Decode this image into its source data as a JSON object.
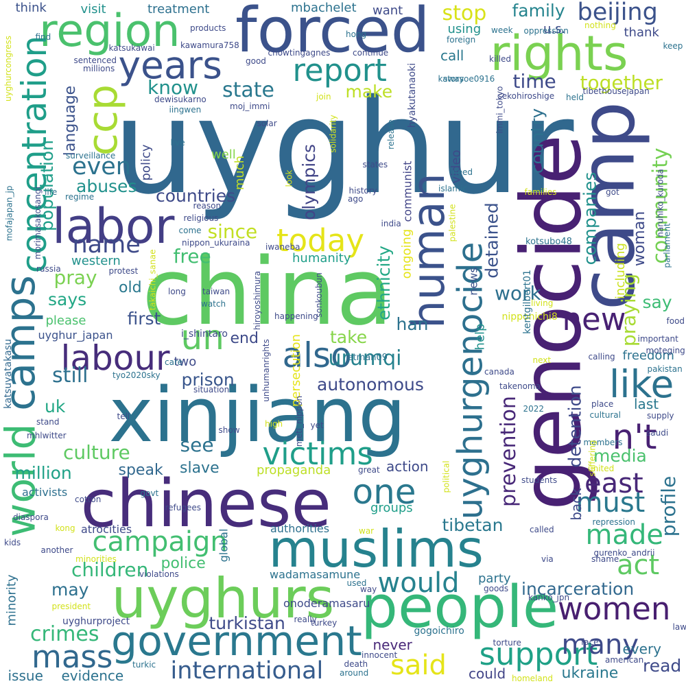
{
  "words": [
    {
      "text": "uyghur",
      "color": "#31688e"
    },
    {
      "text": "china",
      "color": "#5ec962"
    },
    {
      "text": "genocide",
      "color": "#482173"
    },
    {
      "text": "xinjiang",
      "color": "#2c728e"
    },
    {
      "text": "chinese",
      "color": "#472d7b"
    },
    {
      "text": "camp",
      "color": "#3e4a89"
    },
    {
      "text": "people",
      "color": "#35b779"
    },
    {
      "text": "forced",
      "color": "#3b528b"
    },
    {
      "text": "muslims",
      "color": "#26828e"
    },
    {
      "text": "uyghurs",
      "color": "#6ccd5a"
    },
    {
      "text": "rights",
      "color": "#7ad151"
    },
    {
      "text": "region",
      "color": "#4ac16d"
    },
    {
      "text": "labor",
      "color": "#433e85"
    },
    {
      "text": "government",
      "color": "#2a788e"
    },
    {
      "text": "human",
      "color": "#3b528b"
    },
    {
      "text": "camps",
      "color": "#2c728e"
    },
    {
      "text": "concentration",
      "color": "#1f9e89"
    },
    {
      "text": "world",
      "color": "#3dbc74"
    },
    {
      "text": "uyghurgenocide",
      "color": "#2d708e"
    },
    {
      "text": "years",
      "color": "#3b528b"
    },
    {
      "text": "report",
      "color": "#21918c"
    },
    {
      "text": "ccp",
      "color": "#a8db34"
    },
    {
      "text": "labour",
      "color": "#472d7b"
    },
    {
      "text": "also",
      "color": "#31688e"
    },
    {
      "text": "un",
      "color": "#5ec962"
    },
    {
      "text": "like",
      "color": "#2c728e"
    },
    {
      "text": "new",
      "color": "#482173"
    },
    {
      "text": "n't",
      "color": "#482173"
    },
    {
      "text": "one",
      "color": "#2a788e"
    },
    {
      "text": "victims",
      "color": "#1f9e89"
    },
    {
      "text": "today",
      "color": "#e5e419"
    },
    {
      "text": "support",
      "color": "#1fa187"
    },
    {
      "text": "mass",
      "color": "#31688e"
    },
    {
      "text": "women",
      "color": "#481f70"
    },
    {
      "text": "said",
      "color": "#e5e419"
    },
    {
      "text": "would",
      "color": "#26828e"
    },
    {
      "text": "campaign",
      "color": "#42be71"
    },
    {
      "text": "international",
      "color": "#365c8d"
    },
    {
      "text": "many",
      "color": "#3e4a89"
    },
    {
      "text": "act",
      "color": "#5ec962"
    },
    {
      "text": "made",
      "color": "#35b779"
    },
    {
      "text": "must",
      "color": "#2a788e"
    },
    {
      "text": "east",
      "color": "#482878"
    },
    {
      "text": "even",
      "color": "#2c728e"
    },
    {
      "text": "name",
      "color": "#3e4a89"
    },
    {
      "text": "community",
      "color": "#75d054"
    },
    {
      "text": "beijing",
      "color": "#3b528b"
    },
    {
      "text": "state",
      "color": "#2a788e"
    },
    {
      "text": "know",
      "color": "#21918c"
    },
    {
      "text": "together",
      "color": "#bddf26"
    },
    {
      "text": "stop",
      "color": "#d8e219"
    },
    {
      "text": "time",
      "color": "#3e4a89"
    },
    {
      "text": "make",
      "color": "#bddf26"
    },
    {
      "text": "family",
      "color": "#25848e"
    },
    {
      "text": "population",
      "color": "#1f9e89"
    },
    {
      "text": "language",
      "color": "#3b528b"
    },
    {
      "text": "abuses",
      "color": "#21918c"
    },
    {
      "text": "countries",
      "color": "#3e4a89"
    },
    {
      "text": "since",
      "color": "#c2df23"
    },
    {
      "text": "free",
      "color": "#42be71"
    },
    {
      "text": "pray",
      "color": "#7ad151"
    },
    {
      "text": "says",
      "color": "#22a785"
    },
    {
      "text": "old",
      "color": "#2a788e"
    },
    {
      "text": "olympics",
      "color": "#414487"
    },
    {
      "text": "ethnicity",
      "color": "#22a785"
    },
    {
      "text": "detained",
      "color": "#3b528b"
    },
    {
      "text": "prevention",
      "color": "#482878"
    },
    {
      "text": "country",
      "color": "#2d708e"
    },
    {
      "text": "companies",
      "color": "#21918c"
    },
    {
      "text": "work",
      "color": "#2d708e"
    },
    {
      "text": "detention",
      "color": "#3e4a89"
    },
    {
      "text": "praying",
      "color": "#a8db34"
    },
    {
      "text": "say",
      "color": "#3dbc74"
    },
    {
      "text": "profile",
      "color": "#2c728e"
    },
    {
      "text": "woman",
      "color": "#3e4a89"
    },
    {
      "text": "including",
      "color": "#cae11f"
    },
    {
      "text": "first",
      "color": "#3b528b"
    },
    {
      "text": "end",
      "color": "#3e4a89"
    },
    {
      "text": "take",
      "color": "#86d549"
    },
    {
      "text": "han",
      "color": "#2c728e"
    },
    {
      "text": "urumqi",
      "color": "#26828e"
    },
    {
      "text": "autonomous",
      "color": "#3e4a89"
    },
    {
      "text": "prison",
      "color": "#39568c"
    },
    {
      "text": "still",
      "color": "#2d708e"
    },
    {
      "text": "uk",
      "color": "#22a785"
    },
    {
      "text": "see",
      "color": "#2c728e"
    },
    {
      "text": "culture",
      "color": "#5ec962"
    },
    {
      "text": "slave",
      "color": "#2c728e"
    },
    {
      "text": "million",
      "color": "#1fa187"
    },
    {
      "text": "speak",
      "color": "#31688e"
    },
    {
      "text": "propaganda",
      "color": "#bddf26"
    },
    {
      "text": "action",
      "color": "#3e4a89"
    },
    {
      "text": "groups",
      "color": "#1f9e89"
    },
    {
      "text": "tibetan",
      "color": "#2a788e"
    },
    {
      "text": "media",
      "color": "#4ac16d"
    },
    {
      "text": "back",
      "color": "#3e4a89"
    },
    {
      "text": "police",
      "color": "#42be71"
    },
    {
      "text": "children",
      "color": "#35b779"
    },
    {
      "text": "may",
      "color": "#2d708e"
    },
    {
      "text": "party",
      "color": "#2c728e"
    },
    {
      "text": "incarceration",
      "color": "#31688e"
    },
    {
      "text": "turkistan",
      "color": "#3e4a89"
    },
    {
      "text": "crimes",
      "color": "#35b779"
    },
    {
      "text": "never",
      "color": "#482878"
    },
    {
      "text": "every",
      "color": "#2c728e"
    },
    {
      "text": "read",
      "color": "#3e4a89"
    },
    {
      "text": "ukraine",
      "color": "#2a788e"
    },
    {
      "text": "could",
      "color": "#414487"
    },
    {
      "text": "evidence",
      "color": "#2c728e"
    },
    {
      "text": "issue",
      "color": "#2d708e"
    },
    {
      "text": "call",
      "color": "#2a788e"
    },
    {
      "text": "using",
      "color": "#21918c"
    },
    {
      "text": "u.s.",
      "color": "#3e4a89"
    },
    {
      "text": "thank",
      "color": "#3e4a89"
    },
    {
      "text": "want",
      "color": "#3e4a89"
    },
    {
      "text": "mbachelet",
      "color": "#2c728e"
    },
    {
      "text": "visit",
      "color": "#21918c"
    },
    {
      "text": "treatment",
      "color": "#2d708e"
    },
    {
      "text": "think",
      "color": "#3b528b"
    },
    {
      "text": "two",
      "color": "#3e4a89"
    },
    {
      "text": "policy",
      "color": "#3e4a89"
    },
    {
      "text": "well",
      "color": "#86d549"
    },
    {
      "text": "much",
      "color": "#c2df23"
    },
    {
      "text": "communist",
      "color": "#414487"
    },
    {
      "text": "humanity",
      "color": "#1f9e89"
    },
    {
      "text": "western",
      "color": "#21918c"
    },
    {
      "text": "please",
      "color": "#4ac16d"
    },
    {
      "text": "ongoing",
      "color": "#e5e419"
    },
    {
      "text": "persecution",
      "color": "#e5e419"
    },
    {
      "text": "news",
      "color": "#3b528b"
    },
    {
      "text": "video",
      "color": "#3e4a89"
    },
    {
      "text": "help",
      "color": "#21918c"
    },
    {
      "text": "freedom",
      "color": "#2c728e"
    },
    {
      "text": "last",
      "color": "#2a788e"
    },
    {
      "text": "global",
      "color": "#2c728e"
    },
    {
      "text": "minority",
      "color": "#2d708e"
    },
    {
      "text": "uyghur_japan",
      "color": "#3b528b"
    },
    {
      "text": "katsuyatakasu",
      "color": "#31688e"
    },
    {
      "text": "activists",
      "color": "#2d708e"
    },
    {
      "text": "uyghurproject",
      "color": "#3e4a89"
    },
    {
      "text": "onoderamasaru",
      "color": "#3e4a89"
    },
    {
      "text": "wadamasamune",
      "color": "#2c728e"
    },
    {
      "text": "authorities",
      "color": "#2d708e"
    },
    {
      "text": "atrocities",
      "color": "#3e4a89"
    },
    {
      "text": "gogoichiro",
      "color": "#2c728e"
    },
    {
      "text": "nipponichi8",
      "color": "#d2e21b"
    },
    {
      "text": "kentgilbert01",
      "color": "#2c728e"
    },
    {
      "text": "i_shintaro",
      "color": "#3e4a89"
    },
    {
      "text": "etman09",
      "color": "#2c728e"
    },
    {
      "text": "hyakutanaoki",
      "color": "#3e4a89"
    },
    {
      "text": "kotsubo48",
      "color": "#2c728e"
    },
    {
      "text": "naruhiko_kuroda",
      "color": "#3e4a89"
    },
    {
      "text": "tibethousejapan",
      "color": "#3e4a89"
    },
    {
      "text": "sekohiroshige",
      "color": "#3e4a89"
    },
    {
      "text": "kawasoe0916",
      "color": "#2c728e"
    },
    {
      "text": "chowtingagnes",
      "color": "#3e4a89"
    },
    {
      "text": "kawamura758",
      "color": "#3e4a89"
    },
    {
      "text": "katsukawai",
      "color": "#3e4a89"
    },
    {
      "text": "mofajapan_jp",
      "color": "#2c728e"
    },
    {
      "text": "morimasakosangi",
      "color": "#3e4a89"
    },
    {
      "text": "nippon_ukuraina",
      "color": "#3e4a89"
    },
    {
      "text": "iwaneba",
      "color": "#3e4a89"
    },
    {
      "text": "hiroyoshimura",
      "color": "#3e4a89"
    },
    {
      "text": "takaichi_sanae",
      "color": "#d2e21b"
    },
    {
      "text": "sonkoubun",
      "color": "#3e4a89"
    },
    {
      "text": "tyo2020sky",
      "color": "#2c728e"
    },
    {
      "text": "meti_nippon",
      "color": "#3e4a89"
    },
    {
      "text": "takenoma",
      "color": "#3e4a89"
    },
    {
      "text": "kanko_jpn",
      "color": "#3e4a89"
    },
    {
      "text": "gurenko_andrii",
      "color": "#3e4a89"
    },
    {
      "text": "mhlwitter",
      "color": "#3e4a89"
    },
    {
      "text": "uyghurcongress",
      "color": "#d2e21b"
    },
    {
      "text": "dewisukarno",
      "color": "#3e4a89"
    },
    {
      "text": "iingwen",
      "color": "#2c728e"
    },
    {
      "text": "moj_immi",
      "color": "#3e4a89"
    },
    {
      "text": "immi_tokyo",
      "color": "#3e4a89"
    },
    {
      "text": "moteging",
      "color": "#3e4a89"
    },
    {
      "text": "unhumanrights",
      "color": "#3e4a89"
    },
    {
      "text": "surveillance",
      "color": "#2c728e"
    },
    {
      "text": "sentenced",
      "color": "#3e4a89"
    },
    {
      "text": "millions",
      "color": "#3e4a89"
    },
    {
      "text": "products",
      "color": "#3e4a89"
    },
    {
      "text": "hong",
      "color": "#2c728e"
    },
    {
      "text": "continue",
      "color": "#3e4a89"
    },
    {
      "text": "good",
      "color": "#3e4a89"
    },
    {
      "text": "find",
      "color": "#2c728e"
    },
    {
      "text": "oppression",
      "color": "#2c728e"
    },
    {
      "text": "week",
      "color": "#2c728e"
    },
    {
      "text": "foreign",
      "color": "#2c728e"
    },
    {
      "text": "nothing",
      "color": "#d2e21b"
    },
    {
      "text": "keep",
      "color": "#2c728e"
    },
    {
      "text": "killed",
      "color": "#3e4a89"
    },
    {
      "text": "story",
      "color": "#2c728e"
    },
    {
      "text": "held",
      "color": "#2c728e"
    },
    {
      "text": "join",
      "color": "#d2e21b"
    },
    {
      "text": "solidarity",
      "color": "#d2e21b"
    },
    {
      "text": "release",
      "color": "#2c728e"
    },
    {
      "text": "solar",
      "color": "#3e4a89"
    },
    {
      "text": "live",
      "color": "#2c728e"
    },
    {
      "text": "states",
      "color": "#3e4a89"
    },
    {
      "text": "need",
      "color": "#2c728e"
    },
    {
      "text": "islamic",
      "color": "#2c728e"
    },
    {
      "text": "look",
      "color": "#d2e21b"
    },
    {
      "text": "families",
      "color": "#d2e21b"
    },
    {
      "text": "got",
      "color": "#3e4a89"
    },
    {
      "text": "history",
      "color": "#3e4a89"
    },
    {
      "text": "ago",
      "color": "#3e4a89"
    },
    {
      "text": "life",
      "color": "#2c728e"
    },
    {
      "text": "regime",
      "color": "#2c728e"
    },
    {
      "text": "religious",
      "color": "#3e4a89"
    },
    {
      "text": "reason",
      "color": "#3e4a89"
    },
    {
      "text": "come",
      "color": "#2c728e"
    },
    {
      "text": "india",
      "color": "#3e4a89"
    },
    {
      "text": "palestine",
      "color": "#d2e21b"
    },
    {
      "text": "parliament",
      "color": "#2c728e"
    },
    {
      "text": "russia",
      "color": "#3e4a89"
    },
    {
      "text": "protest",
      "color": "#3e4a89"
    },
    {
      "text": "long",
      "color": "#3e4a89"
    },
    {
      "text": "taiwan",
      "color": "#3e4a89"
    },
    {
      "text": "watch",
      "color": "#2c728e"
    },
    {
      "text": "food",
      "color": "#3e4a89"
    },
    {
      "text": "living",
      "color": "#d2e21b"
    },
    {
      "text": "important",
      "color": "#3e4a89"
    },
    {
      "text": "happening",
      "color": "#3e4a89"
    },
    {
      "text": "care",
      "color": "#2c728e"
    },
    {
      "text": "next",
      "color": "#d2e21b"
    },
    {
      "text": "calling",
      "color": "#3e4a89"
    },
    {
      "text": "pakistan",
      "color": "#2c728e"
    },
    {
      "text": "canada",
      "color": "#3e4a89"
    },
    {
      "text": "situation",
      "color": "#3e4a89"
    },
    {
      "text": "tell",
      "color": "#3e4a89"
    },
    {
      "text": "stand",
      "color": "#3e4a89"
    },
    {
      "text": "yet",
      "color": "#3e4a89"
    },
    {
      "text": "high",
      "color": "#d2e21b"
    },
    {
      "text": "show",
      "color": "#3e4a89"
    },
    {
      "text": "place",
      "color": "#3e4a89"
    },
    {
      "text": "cultural",
      "color": "#2c728e"
    },
    {
      "text": "supply",
      "color": "#3e4a89"
    },
    {
      "text": "saudi",
      "color": "#3e4a89"
    },
    {
      "text": "members",
      "color": "#2c728e"
    },
    {
      "text": "suffering",
      "color": "#d2e21b"
    },
    {
      "text": "united",
      "color": "#d2e21b"
    },
    {
      "text": "2022",
      "color": "#2c728e"
    },
    {
      "text": "students",
      "color": "#3e4a89"
    },
    {
      "text": "great",
      "color": "#3e4a89"
    },
    {
      "text": "political",
      "color": "#d2e21b"
    },
    {
      "text": "cotton",
      "color": "#3e4a89"
    },
    {
      "text": "govt",
      "color": "#2c728e"
    },
    {
      "text": "refugees",
      "color": "#3e4a89"
    },
    {
      "text": "diaspora",
      "color": "#3e4a89"
    },
    {
      "text": "kong",
      "color": "#d2e21b"
    },
    {
      "text": "war",
      "color": "#d2e21b"
    },
    {
      "text": "called",
      "color": "#3e4a89"
    },
    {
      "text": "repression",
      "color": "#2c728e"
    },
    {
      "text": "kids",
      "color": "#3e4a89"
    },
    {
      "text": "another",
      "color": "#3e4a89"
    },
    {
      "text": "minorities",
      "color": "#d2e21b"
    },
    {
      "text": "violations",
      "color": "#3e4a89"
    },
    {
      "text": "shame",
      "color": "#3e4a89"
    },
    {
      "text": "via",
      "color": "#3e4a89"
    },
    {
      "text": "used",
      "color": "#2c728e"
    },
    {
      "text": "way",
      "color": "#3e4a89"
    },
    {
      "text": "goods",
      "color": "#3e4a89"
    },
    {
      "text": "president",
      "color": "#d2e21b"
    },
    {
      "text": "really",
      "color": "#3e4a89"
    },
    {
      "text": "turkey",
      "color": "#3e4a89"
    },
    {
      "text": "law",
      "color": "#3e4a89"
    },
    {
      "text": "innocent",
      "color": "#3e4a89"
    },
    {
      "text": "torture",
      "color": "#3e4a89"
    },
    {
      "text": "face",
      "color": "#3e4a89"
    },
    {
      "text": "american",
      "color": "#3e4a89"
    },
    {
      "text": "turkic",
      "color": "#2c728e"
    },
    {
      "text": "death",
      "color": "#3e4a89"
    },
    {
      "text": "around",
      "color": "#2c728e"
    },
    {
      "text": "homeland",
      "color": "#d2e21b"
    }
  ]
}
